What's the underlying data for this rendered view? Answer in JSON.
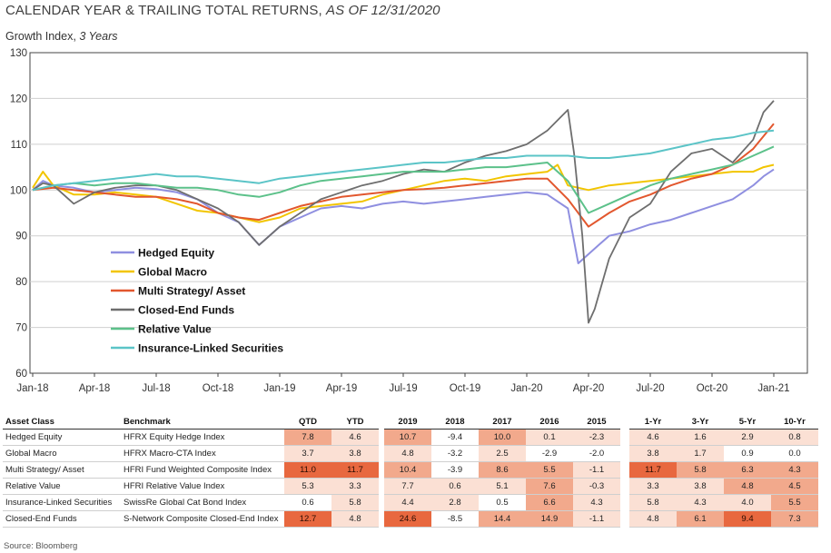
{
  "header": {
    "title_main": "CALENDAR YEAR & TRAILING TOTAL RETURNS,",
    "title_date": "AS OF 12/31/2020",
    "subtitle_main": "Growth Index,",
    "subtitle_period": "3 Years"
  },
  "chart_data": {
    "type": "line",
    "ylabel": "",
    "xlabel": "",
    "ylim": [
      60,
      130
    ],
    "yticks": [
      60,
      70,
      80,
      90,
      100,
      110,
      120,
      130
    ],
    "xticks": [
      "Jan-18",
      "Apr-18",
      "Jul-18",
      "Oct-18",
      "Jan-19",
      "Apr-19",
      "Jul-19",
      "Oct-19",
      "Jan-20",
      "Apr-20",
      "Jul-20",
      "Oct-20",
      "Jan-21"
    ],
    "x_unit": "months since Jan-18 (tick labels Jan-18 … Jan-21)",
    "grid": "horizontal",
    "legend_position": "lower-left",
    "series": [
      {
        "name": "Hedged Equity",
        "color": "#8f8fe0",
        "points": [
          [
            0,
            100
          ],
          [
            0.5,
            102
          ],
          [
            1,
            101
          ],
          [
            2,
            100.5
          ],
          [
            3,
            99.5
          ],
          [
            4,
            100
          ],
          [
            5,
            100.5
          ],
          [
            6,
            100.2
          ],
          [
            7,
            99.5
          ],
          [
            8,
            98
          ],
          [
            9,
            95
          ],
          [
            10,
            93
          ],
          [
            11,
            88
          ],
          [
            12,
            92
          ],
          [
            13,
            94
          ],
          [
            14,
            96
          ],
          [
            15,
            96.5
          ],
          [
            16,
            96
          ],
          [
            17,
            97
          ],
          [
            18,
            97.5
          ],
          [
            19,
            97
          ],
          [
            20,
            97.5
          ],
          [
            21,
            98
          ],
          [
            22,
            98.5
          ],
          [
            23,
            99
          ],
          [
            24,
            99.5
          ],
          [
            25,
            99
          ],
          [
            26,
            96
          ],
          [
            26.5,
            84
          ],
          [
            27,
            86
          ],
          [
            27.5,
            88
          ],
          [
            28,
            90
          ],
          [
            29,
            91
          ],
          [
            30,
            92.5
          ],
          [
            31,
            93.5
          ],
          [
            32,
            95
          ],
          [
            33,
            96.5
          ],
          [
            34,
            98
          ],
          [
            35,
            101
          ],
          [
            35.5,
            103
          ],
          [
            36,
            104.5
          ]
        ]
      },
      {
        "name": "Global  Macro",
        "color": "#f2c500",
        "points": [
          [
            0,
            100.5
          ],
          [
            0.5,
            104
          ],
          [
            1,
            101
          ],
          [
            2,
            99
          ],
          [
            3,
            99
          ],
          [
            4,
            99.5
          ],
          [
            5,
            99
          ],
          [
            6,
            98.5
          ],
          [
            7,
            97
          ],
          [
            8,
            95.5
          ],
          [
            9,
            95
          ],
          [
            10,
            94
          ],
          [
            11,
            93
          ],
          [
            12,
            94
          ],
          [
            13,
            96
          ],
          [
            14,
            96.5
          ],
          [
            15,
            97
          ],
          [
            16,
            97.5
          ],
          [
            17,
            99
          ],
          [
            18,
            100
          ],
          [
            19,
            101
          ],
          [
            20,
            102
          ],
          [
            21,
            102.5
          ],
          [
            22,
            102
          ],
          [
            23,
            103
          ],
          [
            24,
            103.5
          ],
          [
            25,
            104
          ],
          [
            25.5,
            105.5
          ],
          [
            26,
            101
          ],
          [
            27,
            100
          ],
          [
            28,
            101
          ],
          [
            29,
            101.5
          ],
          [
            30,
            102
          ],
          [
            31,
            102.5
          ],
          [
            32,
            103
          ],
          [
            33,
            103.5
          ],
          [
            34,
            104
          ],
          [
            35,
            104
          ],
          [
            35.5,
            105
          ],
          [
            36,
            105.5
          ]
        ]
      },
      {
        "name": "Multi Strategy/ Asset",
        "color": "#e2572e",
        "points": [
          [
            0,
            100
          ],
          [
            1,
            100.5
          ],
          [
            2,
            100
          ],
          [
            3,
            99.5
          ],
          [
            4,
            99
          ],
          [
            5,
            98.5
          ],
          [
            6,
            98.5
          ],
          [
            7,
            98
          ],
          [
            8,
            97
          ],
          [
            9,
            95
          ],
          [
            10,
            94
          ],
          [
            11,
            93.5
          ],
          [
            12,
            95
          ],
          [
            13,
            96.5
          ],
          [
            14,
            97.5
          ],
          [
            15,
            98.5
          ],
          [
            16,
            99
          ],
          [
            17,
            99.5
          ],
          [
            18,
            100
          ],
          [
            19,
            100.2
          ],
          [
            20,
            100.5
          ],
          [
            21,
            101
          ],
          [
            22,
            101.5
          ],
          [
            23,
            102
          ],
          [
            24,
            102.5
          ],
          [
            25,
            102.5
          ],
          [
            26,
            98
          ],
          [
            27,
            92
          ],
          [
            28,
            95
          ],
          [
            29,
            97.5
          ],
          [
            30,
            99
          ],
          [
            31,
            101
          ],
          [
            32,
            102.5
          ],
          [
            33,
            103.5
          ],
          [
            34,
            105.5
          ],
          [
            35,
            109
          ],
          [
            36,
            114.5
          ]
        ]
      },
      {
        "name": "Closed-End Funds",
        "color": "#6e6e6e",
        "points": [
          [
            0,
            100
          ],
          [
            0.5,
            101.5
          ],
          [
            1,
            101
          ],
          [
            2,
            97
          ],
          [
            3,
            99.5
          ],
          [
            4,
            100.5
          ],
          [
            5,
            101
          ],
          [
            6,
            101
          ],
          [
            7,
            100
          ],
          [
            8,
            98
          ],
          [
            9,
            96
          ],
          [
            10,
            93
          ],
          [
            11,
            88
          ],
          [
            12,
            92
          ],
          [
            13,
            95
          ],
          [
            14,
            98
          ],
          [
            15,
            99.5
          ],
          [
            16,
            101
          ],
          [
            17,
            102
          ],
          [
            18,
            103.5
          ],
          [
            19,
            104.5
          ],
          [
            20,
            104
          ],
          [
            21,
            106
          ],
          [
            22,
            107.5
          ],
          [
            23,
            108.5
          ],
          [
            24,
            110
          ],
          [
            25,
            113
          ],
          [
            26,
            117.5
          ],
          [
            26.3,
            108
          ],
          [
            26.7,
            90
          ],
          [
            27,
            71
          ],
          [
            27.3,
            74
          ],
          [
            28,
            85
          ],
          [
            29,
            94
          ],
          [
            30,
            97
          ],
          [
            31,
            104
          ],
          [
            32,
            108
          ],
          [
            33,
            109
          ],
          [
            34,
            106
          ],
          [
            35,
            111
          ],
          [
            35.5,
            117
          ],
          [
            36,
            119.5
          ]
        ]
      },
      {
        "name": "Relative Value",
        "color": "#5cc18a",
        "points": [
          [
            0,
            100
          ],
          [
            1,
            101
          ],
          [
            2,
            101.5
          ],
          [
            3,
            101
          ],
          [
            4,
            101.5
          ],
          [
            5,
            101.5
          ],
          [
            6,
            101
          ],
          [
            7,
            100.5
          ],
          [
            8,
            100.5
          ],
          [
            9,
            100
          ],
          [
            10,
            99
          ],
          [
            11,
            98.5
          ],
          [
            12,
            99.5
          ],
          [
            13,
            101
          ],
          [
            14,
            102
          ],
          [
            15,
            102.5
          ],
          [
            16,
            103
          ],
          [
            17,
            103.5
          ],
          [
            18,
            104
          ],
          [
            19,
            104
          ],
          [
            20,
            104
          ],
          [
            21,
            104.5
          ],
          [
            22,
            105
          ],
          [
            23,
            105
          ],
          [
            24,
            105.5
          ],
          [
            25,
            106
          ],
          [
            26,
            102
          ],
          [
            27,
            95
          ],
          [
            28,
            97
          ],
          [
            29,
            99
          ],
          [
            30,
            101
          ],
          [
            31,
            102.5
          ],
          [
            32,
            103.5
          ],
          [
            33,
            104.5
          ],
          [
            34,
            105.5
          ],
          [
            35,
            107.5
          ],
          [
            36,
            109.5
          ]
        ]
      },
      {
        "name": "Insurance-Linked Securities",
        "color": "#5bc4c7",
        "points": [
          [
            0,
            100
          ],
          [
            1,
            101
          ],
          [
            2,
            101.5
          ],
          [
            3,
            102
          ],
          [
            4,
            102.5
          ],
          [
            5,
            103
          ],
          [
            6,
            103.5
          ],
          [
            7,
            103
          ],
          [
            8,
            103
          ],
          [
            9,
            102.5
          ],
          [
            10,
            102
          ],
          [
            11,
            101.5
          ],
          [
            12,
            102.5
          ],
          [
            13,
            103
          ],
          [
            14,
            103.5
          ],
          [
            15,
            104
          ],
          [
            16,
            104.5
          ],
          [
            17,
            105
          ],
          [
            18,
            105.5
          ],
          [
            19,
            106
          ],
          [
            20,
            106
          ],
          [
            21,
            106.5
          ],
          [
            22,
            107
          ],
          [
            23,
            107
          ],
          [
            24,
            107.5
          ],
          [
            25,
            107.5
          ],
          [
            26,
            107.5
          ],
          [
            27,
            107
          ],
          [
            28,
            107
          ],
          [
            29,
            107.5
          ],
          [
            30,
            108
          ],
          [
            31,
            109
          ],
          [
            32,
            110
          ],
          [
            33,
            111
          ],
          [
            34,
            111.5
          ],
          [
            35,
            112.5
          ],
          [
            36,
            113
          ]
        ]
      }
    ]
  },
  "table": {
    "headers": [
      "Asset Class",
      "Benchmark",
      "QTD",
      "YTD",
      "2019",
      "2018",
      "2017",
      "2016",
      "2015",
      "1-Yr",
      "3-Yr",
      "5-Yr",
      "10-Yr"
    ],
    "rows": [
      {
        "asset": "Hedged Equity",
        "benchmark": "HFRX Equity Hedge Index",
        "values": [
          "7.8",
          "4.6",
          "10.7",
          "-9.4",
          "10.0",
          "0.1",
          "-2.3",
          "4.6",
          "1.6",
          "2.9",
          "0.8"
        ],
        "shades": [
          2,
          1,
          2,
          0,
          2,
          1,
          1,
          1,
          1,
          1,
          1
        ]
      },
      {
        "asset": "Global Macro",
        "benchmark": "HFRX Macro-CTA Index",
        "values": [
          "3.7",
          "3.8",
          "4.8",
          "-3.2",
          "2.5",
          "-2.9",
          "-2.0",
          "3.8",
          "1.7",
          "0.9",
          "0.0"
        ],
        "shades": [
          1,
          1,
          1,
          0,
          1,
          0,
          0,
          1,
          1,
          0,
          0
        ]
      },
      {
        "asset": "Multi Strategy/ Asset",
        "benchmark": "HFRI Fund Weighted Composite Index",
        "values": [
          "11.0",
          "11.7",
          "10.4",
          "-3.9",
          "8.6",
          "5.5",
          "-1.1",
          "11.7",
          "5.8",
          "6.3",
          "4.3"
        ],
        "shades": [
          3,
          3,
          2,
          0,
          2,
          2,
          1,
          3,
          2,
          2,
          2
        ]
      },
      {
        "asset": "Relative Value",
        "benchmark": "HFRI Relative Value Index",
        "values": [
          "5.3",
          "3.3",
          "7.7",
          "0.6",
          "5.1",
          "7.6",
          "-0.3",
          "3.3",
          "3.8",
          "4.8",
          "4.5"
        ],
        "shades": [
          1,
          1,
          1,
          1,
          1,
          2,
          1,
          1,
          1,
          2,
          2
        ]
      },
      {
        "asset": "Insurance-Linked Securities",
        "benchmark": "SwissRe Global Cat Bond Index",
        "values": [
          "0.6",
          "5.8",
          "4.4",
          "2.8",
          "0.5",
          "6.6",
          "4.3",
          "5.8",
          "4.3",
          "4.0",
          "5.5"
        ],
        "shades": [
          0,
          1,
          1,
          1,
          0,
          2,
          1,
          1,
          1,
          1,
          2
        ]
      },
      {
        "asset": "Closed-End Funds",
        "benchmark": "S-Network Composite Closed-End Index",
        "values": [
          "12.7",
          "4.8",
          "24.6",
          "-8.5",
          "14.4",
          "14.9",
          "-1.1",
          "4.8",
          "6.1",
          "9.4",
          "7.3"
        ],
        "shades": [
          3,
          1,
          3,
          0,
          2,
          2,
          1,
          1,
          2,
          3,
          2
        ]
      }
    ],
    "shade_colors": [
      "#ffffff",
      "#fbe0d4",
      "#f2a98c",
      "#e8683f"
    ]
  },
  "footer": {
    "source": "Source: Bloomberg"
  }
}
